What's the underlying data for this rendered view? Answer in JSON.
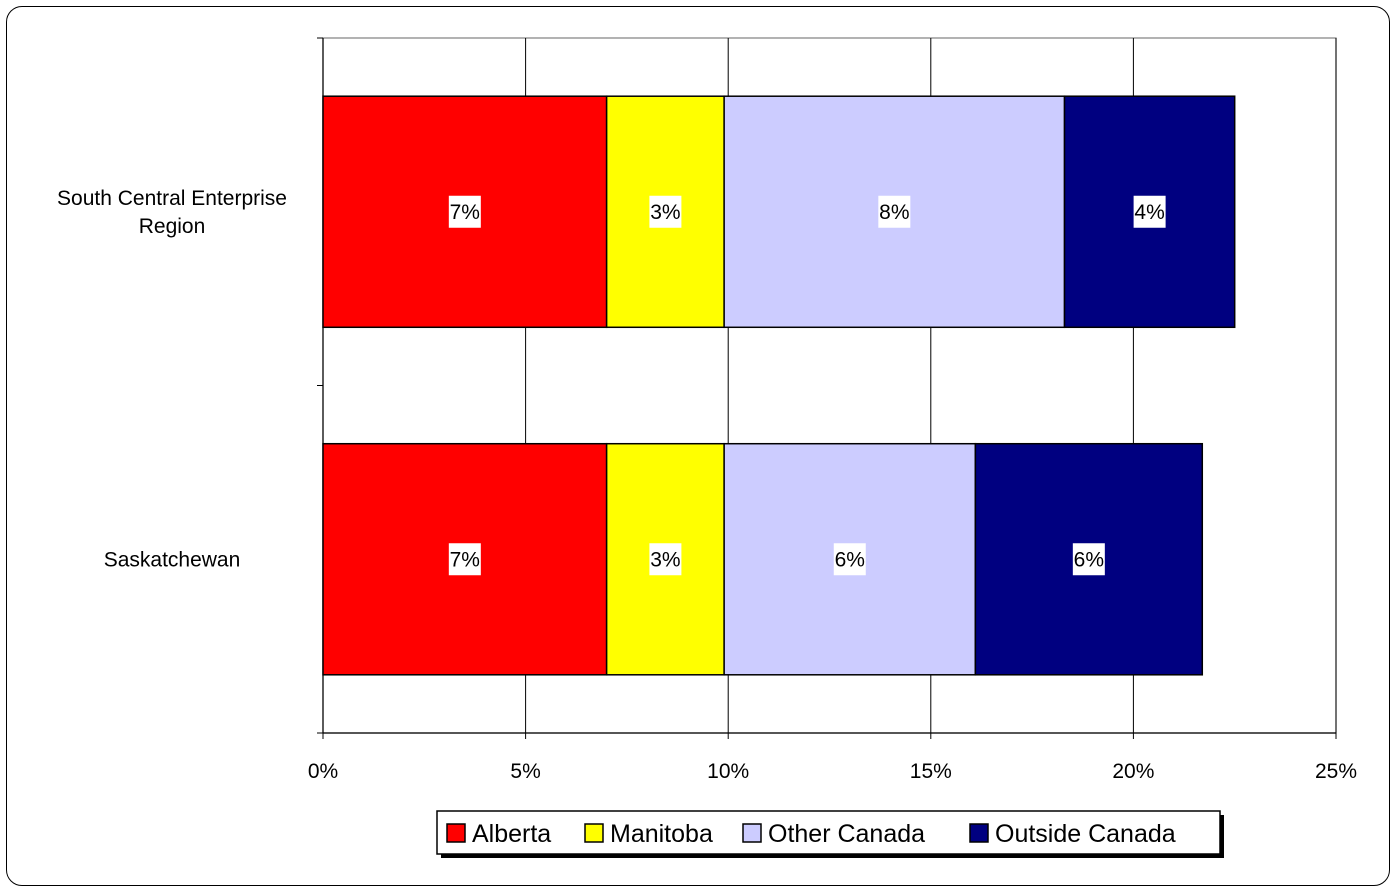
{
  "chart_data": {
    "type": "bar",
    "orientation": "horizontal",
    "stacked": true,
    "categories": [
      "South Central Enterprise Region",
      "Saskatchewan"
    ],
    "category_display": [
      [
        "South Central Enterprise",
        "Region"
      ],
      [
        "Saskatchewan"
      ]
    ],
    "series": [
      {
        "name": "Alberta",
        "color": "#FF0000",
        "values": [
          7.0,
          7.0
        ],
        "labels": [
          "7%",
          "7%"
        ]
      },
      {
        "name": "Manitoba",
        "color": "#FFFF00",
        "values": [
          2.9,
          2.9
        ],
        "labels": [
          "3%",
          "3%"
        ]
      },
      {
        "name": "Other Canada",
        "color": "#CCCCFF",
        "values": [
          8.4,
          6.2
        ],
        "labels": [
          "8%",
          "6%"
        ]
      },
      {
        "name": "Outside Canada",
        "color": "#000080",
        "values": [
          4.2,
          5.6
        ],
        "labels": [
          "4%",
          "6%"
        ]
      }
    ],
    "xlim": [
      0,
      25
    ],
    "x_ticks": [
      0,
      5,
      10,
      15,
      20,
      25
    ],
    "x_tick_labels": [
      "0%",
      "5%",
      "10%",
      "15%",
      "20%",
      "25%"
    ],
    "grid": "vertical",
    "legend": "bottom",
    "title": "",
    "xlabel": "",
    "ylabel": ""
  }
}
